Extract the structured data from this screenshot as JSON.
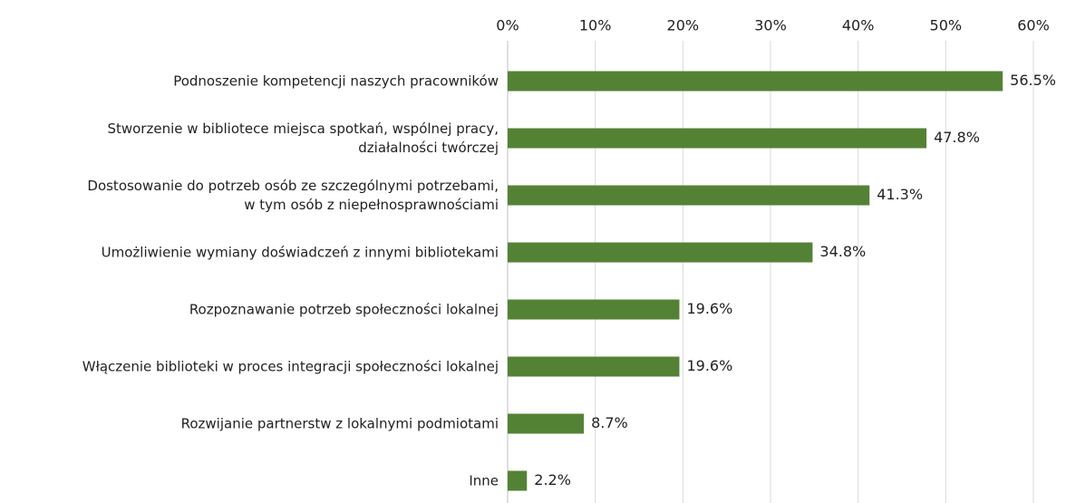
{
  "chart_data": {
    "type": "barh",
    "categories": [
      "Podnoszenie kompetencji naszych pracowników",
      "Stworzenie w bibliotece miejsca spotkań, wspólnej pracy,\ndziałalności twórczej",
      "Dostosowanie do potrzeb osób ze szczególnymi potrzebami,\nw tym osób z niepełnosprawnościami",
      "Umożliwienie wymiany doświadczeń z innymi bibliotekami",
      "Rozpoznawanie potrzeb społeczności lokalnej",
      "Włączenie biblioteki w proces integracji społeczności lokalnej",
      "Rozwijanie partnerstw z lokalnymi podmiotami",
      "Inne"
    ],
    "values": [
      56.5,
      47.8,
      41.3,
      34.8,
      19.6,
      19.6,
      8.7,
      2.2
    ],
    "value_labels": [
      "56.5%",
      "47.8%",
      "41.3%",
      "34.8%",
      "19.6%",
      "19.6%",
      "8.7%",
      "2.2%"
    ],
    "color": "#548235",
    "xlim": [
      0,
      60
    ],
    "xticks": [
      {
        "value": 0,
        "label": "0%"
      },
      {
        "value": 10,
        "label": "10%"
      },
      {
        "value": 20,
        "label": "20%"
      },
      {
        "value": 30,
        "label": "30%"
      },
      {
        "value": 40,
        "label": "40%"
      },
      {
        "value": 50,
        "label": "50%"
      },
      {
        "value": 60,
        "label": "60%"
      }
    ],
    "grid": true
  }
}
